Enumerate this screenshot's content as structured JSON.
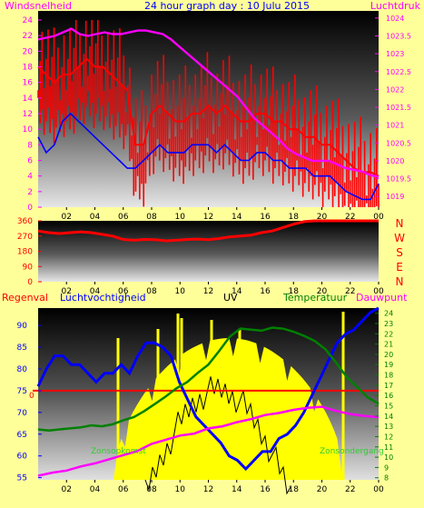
{
  "header": {
    "title": "24 hour graph day : 10 Julu 2015",
    "left_label": "Windsnelheid",
    "right_label": "Luchtdruk"
  },
  "colors": {
    "page_bg": "#ffff99",
    "wind": "#ff0000",
    "gust": "#0000ff",
    "pressure": "#ff00ff",
    "direction": "#ff0000",
    "humidity": "#0000ff",
    "uv": "#000000",
    "solar": "#ffff00",
    "temperature": "#008000",
    "dewpoint": "#ff00ff",
    "rain": "#ff0000"
  },
  "chart_data": [
    {
      "type": "line",
      "name": "wind-and-pressure",
      "title": "24 hour graph day : 10 Julu 2015",
      "x_ticks": [
        "02",
        "04",
        "06",
        "08",
        "10",
        "12",
        "14",
        "16",
        "18",
        "20",
        "22",
        "00"
      ],
      "left_axis": {
        "label": "Windsnelheid",
        "ticks": [
          0,
          2,
          4,
          6,
          8,
          10,
          12,
          14,
          16,
          18,
          20,
          22,
          24
        ],
        "range": [
          0,
          24
        ]
      },
      "right_axis": {
        "label": "Luchtdruk",
        "ticks": [
          1019,
          1019.5,
          1020,
          1020.5,
          1021,
          1021.5,
          1022,
          1022.5,
          1023,
          1023.5,
          1024
        ],
        "range": [
          1018.7,
          1024.2
        ]
      },
      "series": [
        {
          "axis": "left",
          "color": "#ff0000",
          "values": [
            18,
            17,
            16,
            17,
            17,
            18,
            19,
            18,
            18,
            17,
            16,
            15,
            8,
            8,
            12,
            13,
            12,
            11,
            11,
            12,
            12,
            13,
            12,
            13,
            12,
            11,
            11,
            12,
            12,
            11,
            11,
            10,
            10,
            9,
            9,
            8,
            8,
            7,
            6,
            5,
            4.5,
            4.5,
            4
          ]
        },
        {
          "axis": "left",
          "color": "#0000ff",
          "values": [
            9,
            7,
            8,
            11,
            12,
            11,
            10,
            9,
            8,
            7,
            6,
            5,
            5,
            6,
            7,
            8,
            7,
            7,
            7,
            8,
            8,
            8,
            7,
            8,
            7,
            6,
            6,
            7,
            7,
            6,
            6,
            5,
            5,
            5,
            4,
            4,
            4,
            3,
            2,
            1.5,
            1,
            1,
            3
          ]
        },
        {
          "axis": "right",
          "color": "#ff00ff",
          "values": [
            1023.4,
            1023.45,
            1023.5,
            1023.6,
            1023.7,
            1023.55,
            1023.5,
            1023.55,
            1023.6,
            1023.55,
            1023.55,
            1023.6,
            1023.65,
            1023.65,
            1023.6,
            1023.55,
            1023.4,
            1023.2,
            1023.0,
            1022.8,
            1022.6,
            1022.4,
            1022.2,
            1022.0,
            1021.8,
            1021.5,
            1021.2,
            1021.0,
            1020.8,
            1020.6,
            1020.35,
            1020.2,
            1020.1,
            1020.0,
            1020.0,
            1020.0,
            1019.9,
            1019.8,
            1019.75,
            1019.7,
            1019.6,
            1019.55
          ]
        }
      ]
    },
    {
      "type": "line",
      "name": "wind-direction",
      "x_ticks": [
        "02",
        "04",
        "06",
        "08",
        "10",
        "12",
        "14",
        "16",
        "18",
        "20",
        "22",
        "00"
      ],
      "left_axis": {
        "ticks": [
          0,
          90,
          180,
          270,
          360
        ],
        "range": [
          0,
          360
        ]
      },
      "right_axis": {
        "ticks": [
          "N",
          "W",
          "S",
          "E",
          "N"
        ]
      },
      "series": [
        {
          "color": "#ff0000",
          "values": [
            300,
            290,
            285,
            290,
            295,
            290,
            280,
            270,
            250,
            245,
            250,
            248,
            242,
            245,
            250,
            252,
            248,
            255,
            265,
            270,
            275,
            290,
            300,
            320,
            340,
            355,
            360,
            360,
            360,
            360,
            360,
            360,
            360
          ]
        }
      ]
    },
    {
      "type": "line",
      "name": "humidity-uv-temperature",
      "legend": [
        "Regenval",
        "Luchtvochtigheid",
        "UV",
        "Temperatuur",
        "Dauwpunt"
      ],
      "x_ticks": [
        "02",
        "04",
        "06",
        "08",
        "10",
        "12",
        "14",
        "16",
        "18",
        "20",
        "22",
        "00"
      ],
      "left_axis": {
        "ticks": [
          55,
          60,
          65,
          70,
          75,
          80,
          85,
          90
        ],
        "range": [
          54.5,
          94
        ]
      },
      "right_axis": {
        "ticks": [
          8,
          9,
          10,
          11,
          12,
          13,
          14,
          15,
          16,
          17,
          18,
          19,
          20,
          21,
          22,
          23,
          24
        ],
        "range": [
          7.8,
          24.5
        ]
      },
      "rain_marker": {
        "label": "0",
        "value": 75
      },
      "annotations": [
        "Zonsopkomst",
        "Zonsondergang"
      ],
      "series": [
        {
          "name": "Luchtvochtigheid",
          "color": "#0000ff",
          "values": [
            76,
            80,
            83,
            83,
            81,
            81,
            79,
            77,
            79,
            79,
            81,
            79,
            83,
            86,
            86,
            85,
            83,
            77,
            73,
            69,
            67,
            65,
            63,
            60,
            59,
            57,
            59,
            61,
            61,
            64,
            65,
            67,
            70,
            74,
            78,
            82,
            86,
            88,
            89,
            91,
            93,
            94
          ]
        },
        {
          "name": "Temperatuur",
          "color": "#008000",
          "values": [
            12.7,
            12.6,
            12.7,
            12.8,
            12.9,
            13.1,
            13.0,
            13.2,
            13.6,
            13.9,
            14.5,
            15.2,
            15.9,
            16.7,
            17.3,
            18.2,
            19.0,
            20.3,
            21.7,
            22.5,
            22.4,
            22.3,
            22.6,
            22.5,
            22.2,
            21.8,
            21.3,
            20.5,
            19.2,
            17.8,
            16.8,
            15.8,
            15.2
          ]
        },
        {
          "name": "Dauwpunt",
          "color": "#ff00ff",
          "values": [
            8.2,
            8.5,
            8.7,
            9.1,
            9.4,
            9.8,
            10.2,
            10.6,
            11.3,
            11.7,
            12.1,
            12.3,
            12.8,
            13.0,
            13.4,
            13.7,
            14.1,
            14.3,
            14.6,
            14.8,
            14.9,
            14.5,
            14.2,
            14.0,
            13.9
          ]
        }
      ]
    }
  ]
}
